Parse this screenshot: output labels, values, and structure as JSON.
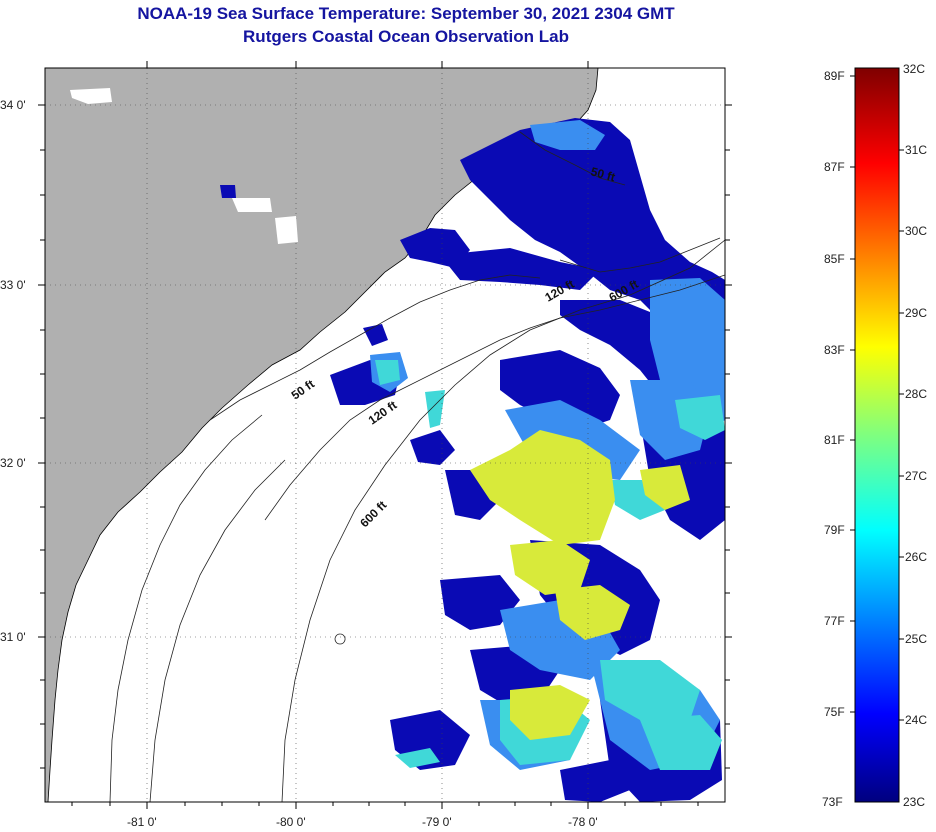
{
  "header": {
    "title": "NOAA-19 Sea Surface Temperature:  September 30, 2021 2304 GMT",
    "subtitle": "Rutgers Coastal Ocean Observation Lab"
  },
  "map": {
    "lat_ticks": [
      {
        "value": 34,
        "label": "34 0'"
      },
      {
        "value": 33,
        "label": "33 0'"
      },
      {
        "value": 32,
        "label": "32 0'"
      },
      {
        "value": 31,
        "label": "31 0'"
      }
    ],
    "lon_ticks": [
      {
        "value": -81,
        "label": "-81 0'"
      },
      {
        "value": -80,
        "label": "-80 0'"
      },
      {
        "value": -79,
        "label": "-79 0'"
      },
      {
        "value": -78,
        "label": "-78 0'"
      }
    ],
    "isobaths": [
      {
        "id": "iso-50-north",
        "label": "50 ft"
      },
      {
        "id": "iso-120-north",
        "label": "120 ft"
      },
      {
        "id": "iso-600-north",
        "label": "600 ft"
      },
      {
        "id": "iso-50-south",
        "label": "50 ft"
      },
      {
        "id": "iso-120-south",
        "label": "120 ft"
      },
      {
        "id": "iso-600-south",
        "label": "600 ft"
      }
    ],
    "colors": {
      "land": "#b0b0b0",
      "cloud": "#ffffff",
      "cold": "#0a0ab4",
      "mid": "#3aa0f0",
      "cyan": "#40e0d8",
      "warm": "#e6f034"
    }
  },
  "colorbar": {
    "fahrenheit_labels": [
      "89F",
      "87F",
      "85F",
      "83F",
      "81F",
      "79F",
      "77F",
      "75F",
      "73F"
    ],
    "celsius_labels": [
      "32C",
      "31C",
      "30C",
      "29C",
      "28C",
      "27C",
      "26C",
      "25C",
      "24C",
      "23C"
    ],
    "range_c": [
      23,
      32
    ],
    "colormap": "jet"
  }
}
